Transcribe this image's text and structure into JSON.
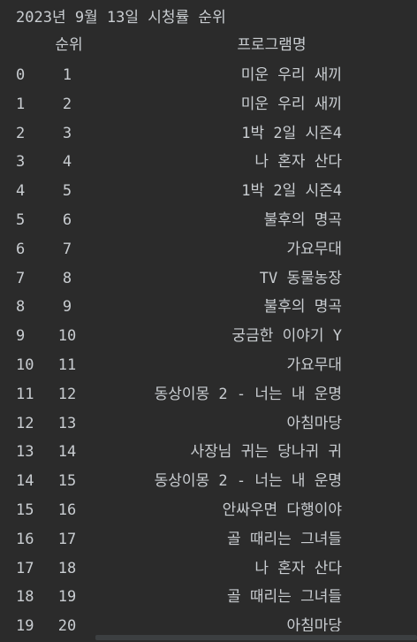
{
  "title": "2023년 9월 13일 시청률 순위",
  "columns": {
    "rank": "순위",
    "program": "프로그램명"
  },
  "rows": [
    {
      "index": "0",
      "rank": "1",
      "program": "미운 우리 새끼"
    },
    {
      "index": "1",
      "rank": "2",
      "program": "미운 우리 새끼"
    },
    {
      "index": "2",
      "rank": "3",
      "program": "1박 2일 시즌4"
    },
    {
      "index": "3",
      "rank": "4",
      "program": "나 혼자 산다"
    },
    {
      "index": "4",
      "rank": "5",
      "program": "1박 2일 시즌4"
    },
    {
      "index": "5",
      "rank": "6",
      "program": "불후의 명곡"
    },
    {
      "index": "6",
      "rank": "7",
      "program": "가요무대"
    },
    {
      "index": "7",
      "rank": "8",
      "program": "TV 동물농장"
    },
    {
      "index": "8",
      "rank": "9",
      "program": "불후의 명곡"
    },
    {
      "index": "9",
      "rank": "10",
      "program": "궁금한 이야기 Y"
    },
    {
      "index": "10",
      "rank": "11",
      "program": "가요무대"
    },
    {
      "index": "11",
      "rank": "12",
      "program": "동상이몽 2 - 너는 내 운명"
    },
    {
      "index": "12",
      "rank": "13",
      "program": "아침마당"
    },
    {
      "index": "13",
      "rank": "14",
      "program": "사장님 귀는 당나귀 귀"
    },
    {
      "index": "14",
      "rank": "15",
      "program": "동상이몽 2 - 너는 내 운명"
    },
    {
      "index": "15",
      "rank": "16",
      "program": "안싸우면 다행이야"
    },
    {
      "index": "16",
      "rank": "17",
      "program": "골 때리는 그녀들"
    },
    {
      "index": "17",
      "rank": "18",
      "program": "나 혼자 산다"
    },
    {
      "index": "18",
      "rank": "19",
      "program": "골 때리는 그녀들"
    },
    {
      "index": "19",
      "rank": "20",
      "program": "아침마당"
    }
  ]
}
